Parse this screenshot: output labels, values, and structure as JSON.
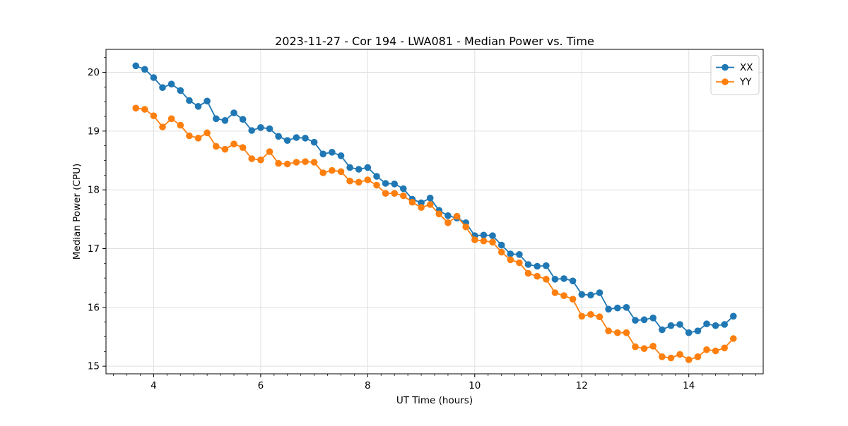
{
  "figure": {
    "background": "#ffffff",
    "grid_color": "#e0e0e0",
    "spine_color": "#000000",
    "legend_border_color": "#cccccc",
    "legend_background": "#ffffff"
  },
  "chart_data": {
    "type": "line",
    "title": "2023-11-27 - Cor 194 - LWA081 - Median Power vs. Time",
    "xlabel": "UT Time (hours)",
    "ylabel": "Median Power (CPU)",
    "xlim": [
      3.11,
      15.39
    ],
    "ylim": [
      14.87,
      20.39
    ],
    "xticks": [
      4,
      6,
      8,
      10,
      12,
      14
    ],
    "yticks": [
      15,
      16,
      17,
      18,
      19,
      20
    ],
    "minor_tick_step_x": 0.25,
    "minor_tick_step_y": 0.25,
    "grid": true,
    "legend_position": "upper right",
    "marker": "circle",
    "x": [
      3.667,
      3.833,
      4.0,
      4.167,
      4.333,
      4.5,
      4.667,
      4.833,
      5.0,
      5.167,
      5.333,
      5.5,
      5.667,
      5.833,
      6.0,
      6.167,
      6.333,
      6.5,
      6.667,
      6.833,
      7.0,
      7.167,
      7.333,
      7.5,
      7.667,
      7.833,
      8.0,
      8.167,
      8.333,
      8.5,
      8.667,
      8.833,
      9.0,
      9.167,
      9.333,
      9.5,
      9.667,
      9.833,
      10.0,
      10.167,
      10.333,
      10.5,
      10.667,
      10.833,
      11.0,
      11.167,
      11.333,
      11.5,
      11.667,
      11.833,
      12.0,
      12.167,
      12.333,
      12.5,
      12.667,
      12.833,
      13.0,
      13.167,
      13.333,
      13.5,
      13.667,
      13.833,
      14.0,
      14.167,
      14.333,
      14.5,
      14.667,
      14.833
    ],
    "series": [
      {
        "name": "XX",
        "color": "#1f77b4",
        "values": [
          20.11,
          20.05,
          19.91,
          19.74,
          19.8,
          19.69,
          19.52,
          19.42,
          19.51,
          19.21,
          19.18,
          19.31,
          19.2,
          19.01,
          19.06,
          19.04,
          18.91,
          18.84,
          18.89,
          18.88,
          18.81,
          18.61,
          18.64,
          18.58,
          18.38,
          18.35,
          18.38,
          18.23,
          18.11,
          18.1,
          18.02,
          17.84,
          17.78,
          17.86,
          17.65,
          17.56,
          17.52,
          17.44,
          17.22,
          17.23,
          17.22,
          17.06,
          16.91,
          16.9,
          16.73,
          16.7,
          16.71,
          16.48,
          16.49,
          16.45,
          16.22,
          16.21,
          16.25,
          15.97,
          15.99,
          16.0,
          15.78,
          15.79,
          15.82,
          15.62,
          15.69,
          15.71,
          15.57,
          15.6,
          15.72,
          15.69,
          15.71,
          15.85
        ]
      },
      {
        "name": "YY",
        "color": "#ff7f0e",
        "values": [
          19.39,
          19.37,
          19.26,
          19.07,
          19.21,
          19.1,
          18.92,
          18.88,
          18.97,
          18.74,
          18.69,
          18.78,
          18.72,
          18.53,
          18.51,
          18.65,
          18.45,
          18.44,
          18.47,
          18.48,
          18.47,
          18.29,
          18.33,
          18.31,
          18.15,
          18.13,
          18.17,
          18.08,
          17.94,
          17.94,
          17.9,
          17.79,
          17.7,
          17.75,
          17.59,
          17.44,
          17.55,
          17.37,
          17.15,
          17.13,
          17.11,
          16.94,
          16.81,
          16.76,
          16.58,
          16.53,
          16.48,
          16.25,
          16.2,
          16.14,
          15.85,
          15.88,
          15.84,
          15.6,
          15.57,
          15.57,
          15.33,
          15.3,
          15.34,
          15.16,
          15.14,
          15.2,
          15.11,
          15.16,
          15.28,
          15.26,
          15.31,
          15.47
        ]
      }
    ]
  }
}
